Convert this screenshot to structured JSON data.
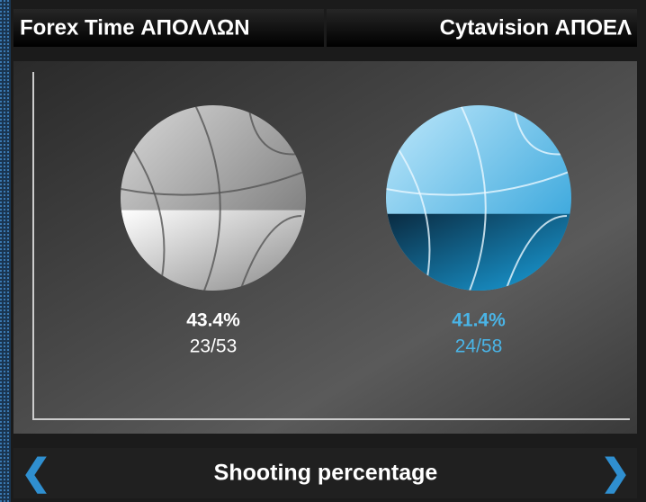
{
  "chart_data": {
    "type": "ball",
    "title": "Shooting percentage",
    "ylim": [
      0,
      100
    ],
    "series": [
      {
        "name": "Forex Time ΑΠΟΛΛΩΝ",
        "color": "#ffffff",
        "values": [
          43.4
        ],
        "value_labels": [
          "43.4%"
        ],
        "detail_labels": [
          "23/53"
        ]
      },
      {
        "name": "Cytavision ΑΠΟΕΛ",
        "color": "#4ab4e6",
        "values": [
          41.4
        ],
        "value_labels": [
          "41.4%"
        ],
        "detail_labels": [
          "24/58"
        ]
      }
    ]
  }
}
